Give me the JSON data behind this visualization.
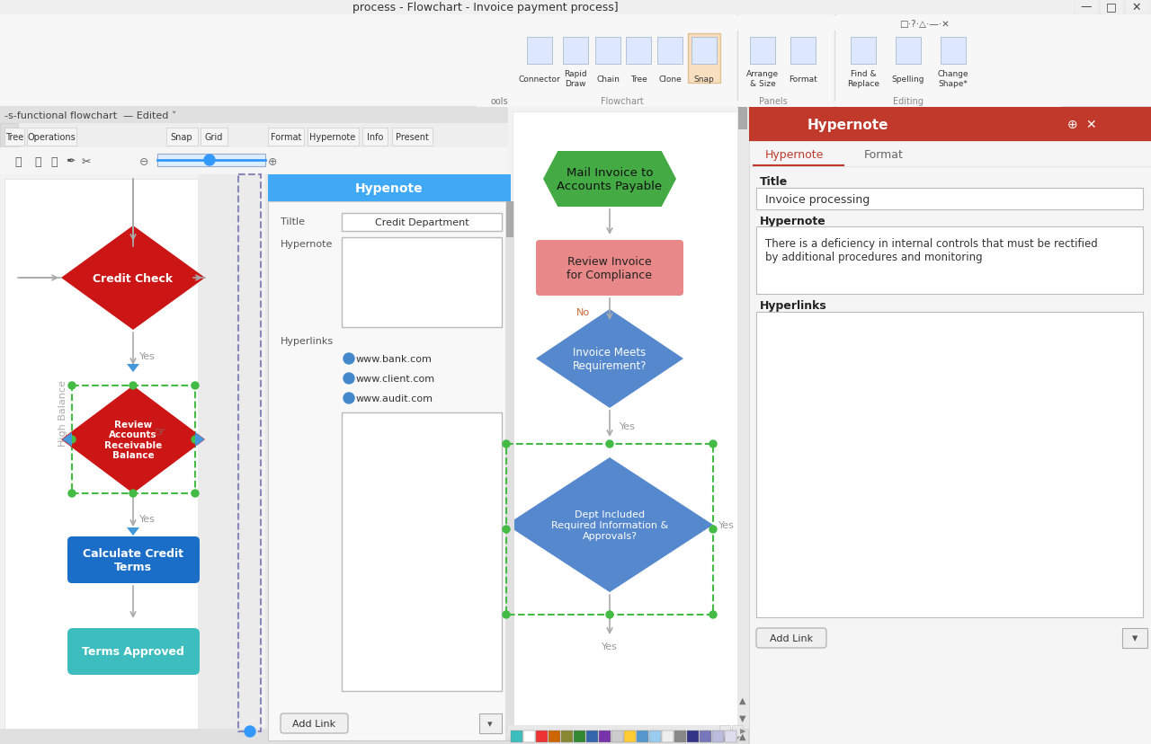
{
  "title_bar_text": "process - Flowchart - Invoice payment process]",
  "bg_color": "#e8e8e8",
  "titlebar_bg": "#f0f0f0",
  "ribbon_bg": "#f7f7f7",
  "canvas_bg": "#f0f0f0",
  "white_canvas_bg": "#ffffff",
  "left_panel_bg": "#ebebeb",
  "hypenote_blue_header": "#3fa9f5",
  "snap_highlight": "#f8dfc0",
  "credit_check_color": "#cc1515",
  "review_accounts_color": "#cc1515",
  "calculate_credit_color": "#1a6ec7",
  "terms_approved_color": "#3dbdbd",
  "mail_invoice_color": "#44aa44",
  "review_invoice_color": "#e88888",
  "invoice_meets_color": "#5588cc",
  "dept_included_color": "#5588cc",
  "arrow_color": "#999999",
  "green_dot_color": "#44bb44",
  "blue_arrow_color": "#4499dd",
  "yes_color": "#999999",
  "no_color": "#cc6633",
  "dashed_green": "#44bb44",
  "dashed_blue": "#8888bb",
  "right_panel_red": "#c0392b",
  "right_panel_bg": "#f5f5f5",
  "hypenote_title": "Credit Department",
  "hypenote_links": [
    "www.bank.com",
    "www.client.com",
    "www.audit.com"
  ],
  "right_title": "Invoice processing",
  "right_hypernote_text": "There is a deficiency in internal controls that must be rectified\nby additional procedures and monitoring",
  "palette_colors": [
    "#3dbdbd",
    "#ffffff",
    "#ee3333",
    "#cc6600",
    "#888833",
    "#338833",
    "#3366aa",
    "#7733aa",
    "#cccccc",
    "#ffcc33",
    "#5599cc",
    "#99ccee",
    "#eeeeee",
    "#888888",
    "#333388",
    "#7777bb",
    "#bbbbdd",
    "#ddddee"
  ]
}
